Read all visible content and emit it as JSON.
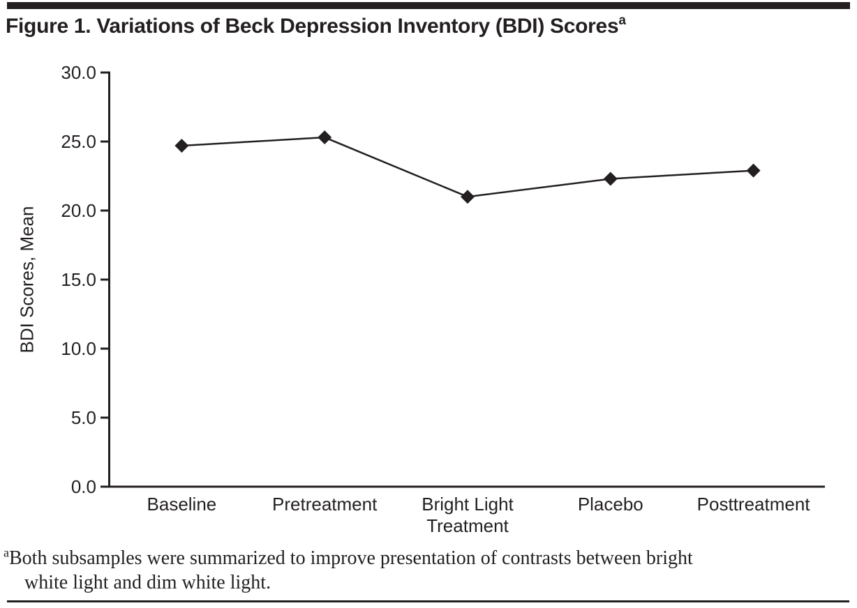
{
  "page": {
    "title": "Figure 1. Variations of Beck Depression Inventory (BDI) Scores",
    "title_superscript": "a",
    "footnote_marker": "a",
    "footnote_line1": "Both subsamples were summarized to improve presentation of contrasts between bright",
    "footnote_line2": "white light and dim white light."
  },
  "colors": {
    "ink": "#231f20",
    "background": "#ffffff"
  },
  "chart_data": {
    "type": "line",
    "title": "Figure 1. Variations of Beck Depression Inventory (BDI) Scores",
    "categories": [
      "Baseline",
      "Pretreatment",
      "Bright Light Treatment",
      "Placebo",
      "Posttreatment"
    ],
    "category_label_lines": [
      [
        "Baseline"
      ],
      [
        "Pretreatment"
      ],
      [
        "Bright Light",
        "Treatment"
      ],
      [
        "Placebo"
      ],
      [
        "Posttreatment"
      ]
    ],
    "series": [
      {
        "name": "BDI Scores, Mean",
        "values": [
          24.7,
          25.3,
          21.0,
          22.3,
          22.9
        ]
      }
    ],
    "xlabel": "",
    "ylabel": "BDI Scores, Mean",
    "ylim": [
      0,
      30
    ],
    "ytick_step": 5,
    "ytick_labels": [
      "0.0",
      "5.0",
      "10.0",
      "15.0",
      "20.0",
      "25.0",
      "30.0"
    ],
    "marker": "diamond",
    "line_color": "#231f20",
    "marker_color": "#231f20",
    "grid": false,
    "legend_position": "none"
  }
}
